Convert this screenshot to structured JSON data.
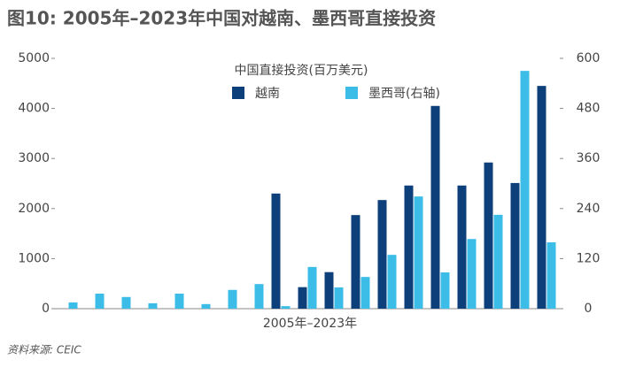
{
  "chart_data": {
    "type": "bar",
    "title": "图10: 2005年–2023年中国对越南、墨西哥直接投资",
    "x_label": "2005年–2023年",
    "legend_title": "中国直接投资(百万美元)",
    "source": "资料来源: CEIC",
    "categories": [
      null,
      null,
      null,
      null,
      null,
      null,
      null,
      null,
      null,
      null,
      null,
      null,
      null,
      null,
      null,
      null,
      null,
      null,
      null
    ],
    "series": [
      {
        "name": "越南",
        "color": "#0d3f7a",
        "values": [
          0,
          0,
          0,
          0,
          0,
          0,
          0,
          0,
          2300,
          430,
          730,
          1870,
          2170,
          2460,
          4050,
          2460,
          2920,
          2510,
          4450
        ]
      },
      {
        "name": "墨西哥(右轴)",
        "color": "#3cbde8",
        "axis": "y2",
        "values": [
          15,
          36,
          28,
          13,
          36,
          11,
          45,
          59,
          6,
          100,
          51,
          76,
          129,
          269,
          87,
          167,
          225,
          570,
          159
        ]
      }
    ],
    "ylim": [
      0,
      5000
    ],
    "yticks": [
      0,
      1000,
      2000,
      3000,
      4000,
      5000
    ],
    "y2lim": [
      0,
      600
    ],
    "y2ticks": [
      0,
      120,
      240,
      360,
      480,
      600
    ],
    "grid": false
  }
}
